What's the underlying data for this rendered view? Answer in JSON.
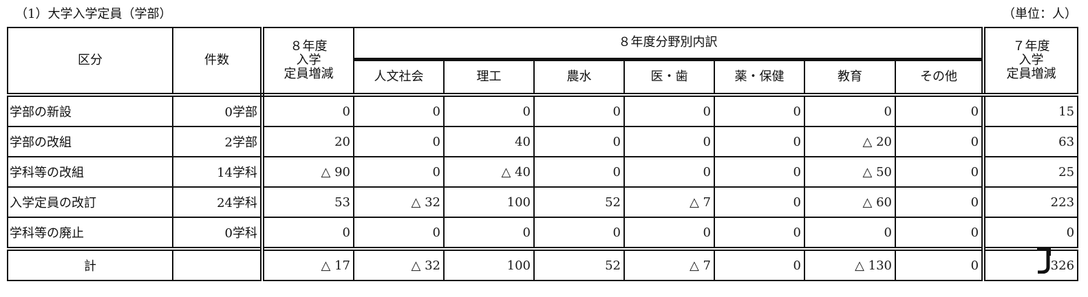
{
  "title": "（1）大学入学定員（学部）",
  "unit": "（単位：人）",
  "header": {
    "kubun": "区分",
    "kensu": "件数",
    "y8": "８年度\n入学\n定員増減",
    "breakdown": "８年度分野別内訳",
    "fields": [
      "人文社会",
      "理工",
      "農水",
      "医・歯",
      "薬・保健",
      "教育",
      "その他"
    ],
    "y7": "７年度\n入学\n定員増減"
  },
  "rows": [
    {
      "label": "学部の新設",
      "count": "0学部",
      "cells": [
        "0",
        "0",
        "0",
        "0",
        "0",
        "0",
        "0",
        "0",
        "15"
      ]
    },
    {
      "label": "学部の改組",
      "count": "2学部",
      "cells": [
        "20",
        "0",
        "40",
        "0",
        "0",
        "0",
        "△ 20",
        "0",
        "63"
      ]
    },
    {
      "label": "学科等の改組",
      "count": "14学科",
      "cells": [
        "△ 90",
        "0",
        "△ 40",
        "0",
        "0",
        "0",
        "△ 50",
        "0",
        "25"
      ]
    },
    {
      "label": "入学定員の改訂",
      "count": "24学科",
      "cells": [
        "53",
        "△ 32",
        "100",
        "52",
        "△ 7",
        "0",
        "△ 60",
        "0",
        "223"
      ]
    },
    {
      "label": "学科等の廃止",
      "count": "0学科",
      "cells": [
        "0",
        "0",
        "0",
        "0",
        "0",
        "0",
        "0",
        "0",
        "0"
      ]
    }
  ],
  "total": {
    "label": "計",
    "count": "",
    "cells": [
      "△ 17",
      "△ 32",
      "100",
      "52",
      "△ 7",
      "0",
      "△ 130",
      "0",
      "326"
    ]
  },
  "watermark": "JIAYI"
}
